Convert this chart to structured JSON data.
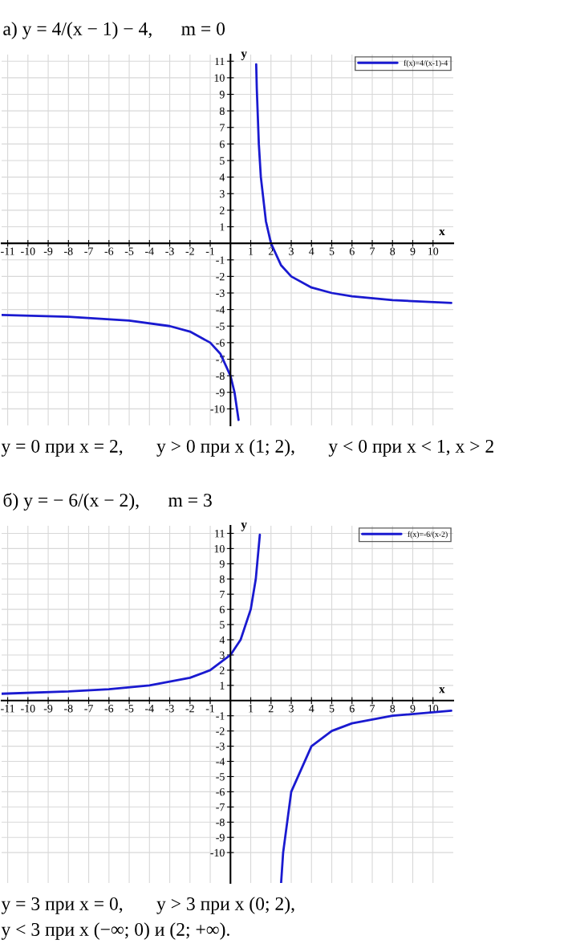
{
  "chart_data": [
    {
      "type": "line",
      "title": "а) y = 4/(x − 1) − 4,      m = 0",
      "xlabel": "x",
      "ylabel": "y",
      "xlim": [
        -11.3,
        11.0
      ],
      "ylim": [
        -11,
        11.4
      ],
      "xticks": [
        -11,
        -10,
        -9,
        -8,
        -7,
        -6,
        -5,
        -4,
        -3,
        -2,
        -1,
        1,
        2,
        3,
        4,
        5,
        6,
        7,
        8,
        9,
        10
      ],
      "yticks": [
        -10,
        -9,
        -8,
        -7,
        -6,
        -5,
        -4,
        -3,
        -2,
        -1,
        1,
        2,
        3,
        4,
        5,
        6,
        7,
        8,
        9,
        10,
        11
      ],
      "grid": true,
      "legend": "top right",
      "marker": "none",
      "line_style": "solid",
      "series": [
        {
          "name": "f(x)=4/(x-1)-4",
          "color": "#1a1ad0",
          "x": [
            -11.3,
            -8,
            -5,
            -3,
            -2,
            -1,
            -0.5,
            0,
            0.2,
            0.4,
            null,
            1.27,
            1.3,
            1.4,
            1.5,
            1.75,
            2,
            2.5,
            3,
            4,
            5,
            6,
            8,
            10.9
          ],
          "values": [
            -4.33,
            -4.44,
            -4.67,
            -5,
            -5.33,
            -6,
            -6.67,
            -8,
            -9,
            -10.67,
            null,
            10.81,
            9.33,
            6,
            4,
            1.33,
            0,
            -1.33,
            -2,
            -2.67,
            -3,
            -3.2,
            -3.43,
            -3.6
          ]
        }
      ],
      "annotations": [
        "y = 0 при x = 2,       y > 0 при x (1; 2),       y < 0 при x < 1, x > 2"
      ]
    },
    {
      "type": "line",
      "title": "б) y = − 6/(x − 2),      m = 3",
      "xlabel": "x",
      "ylabel": "y",
      "xlim": [
        -11.3,
        11.0
      ],
      "ylim": [
        -12,
        11.5
      ],
      "xticks": [
        -11,
        -10,
        -9,
        -8,
        -7,
        -6,
        -5,
        -4,
        -3,
        -2,
        -1,
        1,
        2,
        3,
        4,
        5,
        6,
        7,
        8,
        9,
        10
      ],
      "yticks": [
        -10,
        -9,
        -8,
        -7,
        -6,
        -5,
        -4,
        -3,
        -2,
        -1,
        1,
        2,
        3,
        4,
        5,
        6,
        7,
        8,
        9,
        10,
        11
      ],
      "grid": true,
      "legend": "top right",
      "marker": "none",
      "line_style": "solid",
      "series": [
        {
          "name": "f(x)=-6/(x-2)",
          "color": "#1a1ad0",
          "x": [
            -11.3,
            -8,
            -6,
            -4,
            -2,
            -1,
            0,
            0.5,
            1,
            1.25,
            1.45,
            null,
            2.5,
            2.6,
            3,
            4,
            5,
            6,
            8,
            10.9
          ],
          "values": [
            0.45,
            0.6,
            0.75,
            1,
            1.5,
            2,
            3,
            4,
            6,
            8,
            10.91,
            null,
            -12,
            -10,
            -6,
            -3,
            -2,
            -1.5,
            -1,
            -0.67
          ]
        }
      ],
      "annotations": [
        "y = 3 при x = 0,       y > 3 при x (0; 2),",
        "y < 3 при x (−∞; 0) и (2; +∞)."
      ]
    }
  ]
}
